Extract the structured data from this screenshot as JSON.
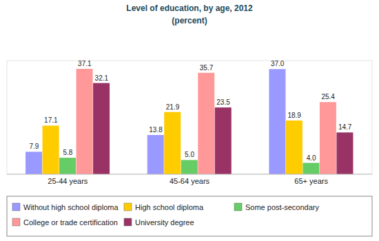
{
  "chart_data": {
    "type": "bar",
    "title": "Level of education, by age, 2012",
    "subtitle": "(percent)",
    "categories": [
      "25-44 years",
      "45-64 years",
      "65+ years"
    ],
    "series": [
      {
        "name": "Without high school diploma",
        "color": "#9999ff",
        "values": [
          7.9,
          13.8,
          37.0
        ]
      },
      {
        "name": "High school diploma",
        "color": "#ffcc00",
        "values": [
          17.1,
          21.9,
          18.9
        ]
      },
      {
        "name": "Some post-secondary",
        "color": "#66cc66",
        "values": [
          5.8,
          5.0,
          4.0
        ]
      },
      {
        "name": "College or trade certification",
        "color": "#ff9999",
        "values": [
          37.1,
          35.7,
          25.4
        ]
      },
      {
        "name": "University degree",
        "color": "#993366",
        "values": [
          32.1,
          23.5,
          14.7
        ]
      }
    ],
    "ylim": [
      0,
      40
    ],
    "data_labels": true,
    "tick_labels": "x",
    "legend": "bottom"
  }
}
